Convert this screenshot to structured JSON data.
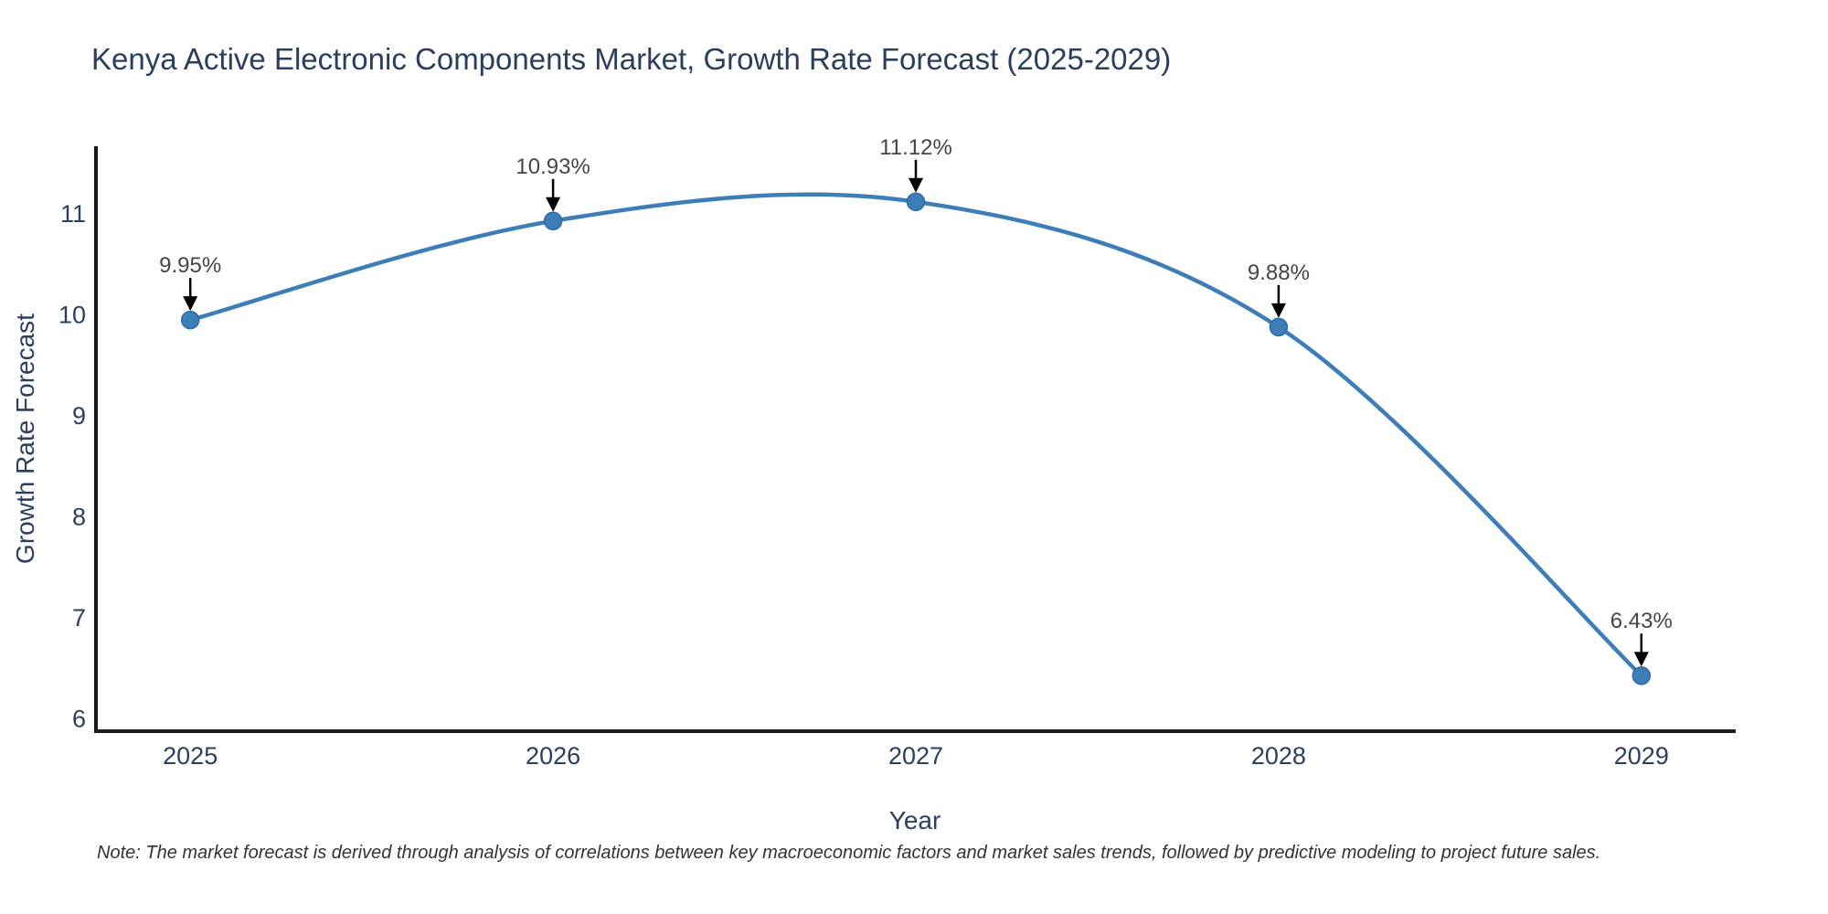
{
  "note": "Note: The market forecast is derived through analysis of correlations between key macroeconomic factors and market sales trends, followed by predictive modeling to project future sales.",
  "colors": {
    "line": "#3d7eb8",
    "marker_fill": "#3d7eb8",
    "marker_edge": "#2e6ba4",
    "axis_line": "#1a1a1a",
    "tick_text": "#2a3f5f",
    "annotation_text": "#444444",
    "annotation_arrow": "#000000",
    "title_text": "#2a3f5f",
    "background": "#ffffff"
  },
  "chart_data": {
    "type": "line",
    "title": "Kenya Active Electronic Components Market, Growth Rate Forecast (2025-2029)",
    "xlabel": "Year",
    "ylabel": "Growth Rate Forecast",
    "x": [
      2025,
      2026,
      2027,
      2028,
      2029
    ],
    "values": [
      9.95,
      10.93,
      11.12,
      9.88,
      6.43
    ],
    "point_labels": [
      "9.95%",
      "10.93%",
      "11.12%",
      "9.88%",
      "6.43%"
    ],
    "x_tick_labels": [
      "2025",
      "2026",
      "2027",
      "2028",
      "2029"
    ],
    "y_ticks": [
      6,
      7,
      8,
      9,
      10,
      11
    ],
    "xlim": [
      2024.74,
      2029.26
    ],
    "ylim": [
      5.88,
      11.67
    ],
    "line_shape": "spline",
    "grid": false,
    "legend": false,
    "annotations_arrow": true
  }
}
